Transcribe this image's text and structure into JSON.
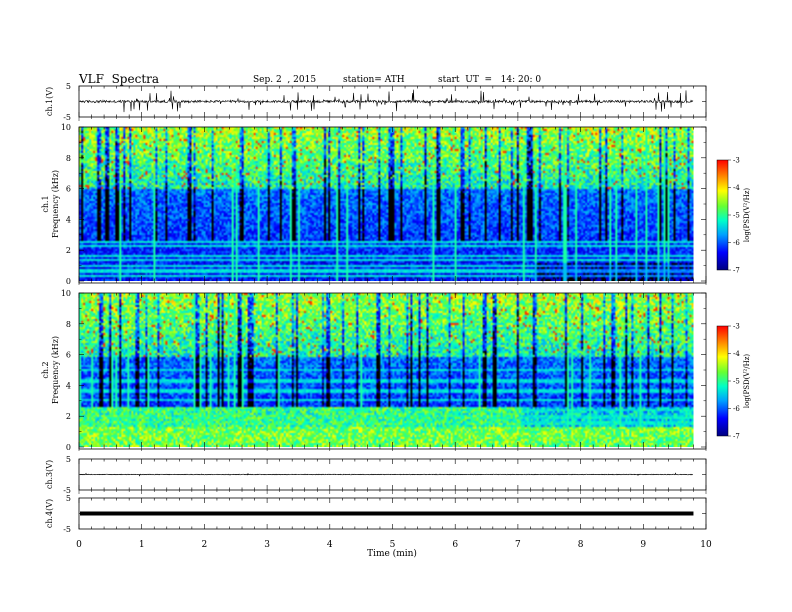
{
  "header": {
    "title": "VLF  Spectra",
    "date": "Sep. 2  , 2015",
    "station": "station= ATH",
    "start": "start  UT  =   14: 20: 0"
  },
  "colors": {
    "spectrogram_low": "#00007f",
    "spectrogram_mid": "#00c8a0",
    "spectrogram_high": "#ff0000",
    "trace": "#000000"
  },
  "chart_data": [
    {
      "type": "line",
      "panel": "ch1-waveform",
      "ylabel": "ch.1(V)",
      "yticks": [
        "5",
        "-5"
      ],
      "ylim": [
        -5,
        5
      ],
      "baseline": 0.0,
      "noise_amplitude": 0.4,
      "spike_amplitude": 3.5
    },
    {
      "type": "heatmap",
      "panel": "ch1-spectrogram",
      "ylabel": "ch.1\nFrequency  (kHz)",
      "ylim": [
        0,
        10
      ],
      "yticks": [
        "0",
        "2",
        "4",
        "6",
        "8",
        "10"
      ],
      "colorbar": {
        "label": "log(PSD(V²/Hz)",
        "ticks": [
          "-3",
          "-4",
          "-5",
          "-6",
          "-7"
        ],
        "range": [
          -7,
          -3
        ]
      },
      "green_band_floor_khz": 6.0,
      "dense_lines_khz": [
        0.3,
        0.6,
        0.9,
        1.3,
        1.6,
        2.2,
        2.5
      ]
    },
    {
      "type": "heatmap",
      "panel": "ch2-spectrogram",
      "ylabel": "ch.2\nFrequency  (kHz)",
      "ylim": [
        0,
        10
      ],
      "yticks": [
        "0",
        "2",
        "4",
        "6",
        "8",
        "10"
      ],
      "colorbar": {
        "label": "log(PSD(V²/Hz)",
        "ticks": [
          "-3",
          "-4",
          "-5",
          "-6",
          "-7"
        ],
        "range": [
          -7,
          -3
        ]
      },
      "green_band_floor_khz": 5.8,
      "dense_lines_khz": [
        0.2,
        0.5,
        0.8,
        1.1,
        1.5,
        1.9,
        2.4,
        3.0,
        3.6,
        4.3,
        5.0
      ]
    },
    {
      "type": "line",
      "panel": "ch3-waveform",
      "ylabel": "ch.3(V)",
      "yticks": [
        "5",
        "-5"
      ],
      "ylim": [
        -5,
        5
      ],
      "baseline": 0.0,
      "noise_amplitude": 0.1,
      "spike_amplitude": 0.4
    },
    {
      "type": "line",
      "panel": "ch4-waveform",
      "ylabel": "ch.4(V)",
      "yticks": [
        "5",
        "-5"
      ],
      "ylim": [
        -5,
        5
      ],
      "baseline": 0.0,
      "noise_amplitude": 0.15,
      "spike_amplitude": 0.2
    }
  ],
  "xaxis": {
    "xlabel": "Time  (min)",
    "xlim": [
      0,
      10
    ],
    "data_end": 9.8,
    "ticks": [
      "0",
      "1",
      "2",
      "3",
      "4",
      "5",
      "6",
      "7",
      "8",
      "9",
      "10"
    ]
  }
}
